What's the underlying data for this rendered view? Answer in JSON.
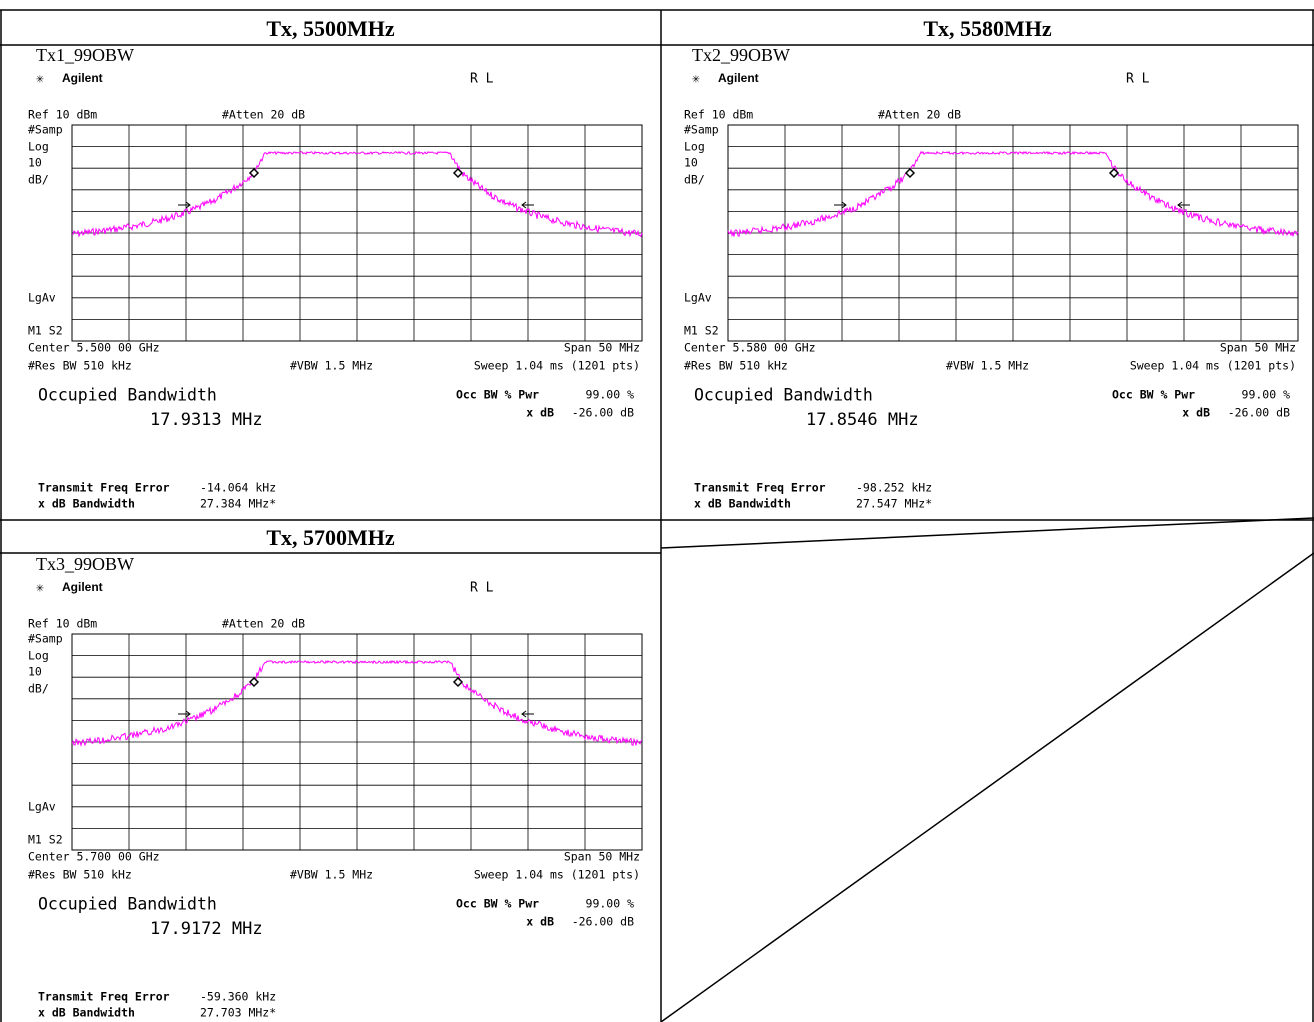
{
  "panels": [
    {
      "header": "Tx, 5500MHz",
      "watermark": "Tx1_99OBW",
      "center": "Center 5.500 00 GHz",
      "occupied_bw": "17.9313 MHz",
      "freq_error": "-14.064 kHz",
      "xdb_bandwidth": "27.384 MHz*"
    },
    {
      "header": "Tx, 5580MHz",
      "watermark": "Tx2_99OBW",
      "center": "Center 5.580 00 GHz",
      "occupied_bw": "17.8546 MHz",
      "freq_error": "-98.252 kHz",
      "xdb_bandwidth": "27.547 MHz*"
    },
    {
      "header": "Tx, 5700MHz",
      "watermark": "Tx3_99OBW",
      "center": "Center 5.700 00 GHz",
      "occupied_bw": "17.9172 MHz",
      "freq_error": "-59.360 kHz",
      "xdb_bandwidth": "27.703 MHz*"
    }
  ],
  "labels": {
    "brand": "Agilent",
    "rl": "R L",
    "ref": "Ref 10 dBm",
    "atten": "#Atten 20 dB",
    "samp": "#Samp",
    "log": "Log",
    "div": "10",
    "unit": "dB/",
    "lgav": "LgAv",
    "m1s2": "M1 S2",
    "span": "Span 50 MHz",
    "rbw": "#Res BW 510 kHz",
    "vbw": "#VBW 1.5 MHz",
    "sweep": "Sweep 1.04 ms (1201 pts)",
    "occ_title": "Occupied Bandwidth",
    "occ_pwr": "Occ BW % Pwr",
    "occ_pwr_value": "99.00 %",
    "xdb": "x dB",
    "xdb_value": "-26.00 dB",
    "tfe": "Transmit Freq Error",
    "xdbbw": "x dB Bandwidth"
  }
}
